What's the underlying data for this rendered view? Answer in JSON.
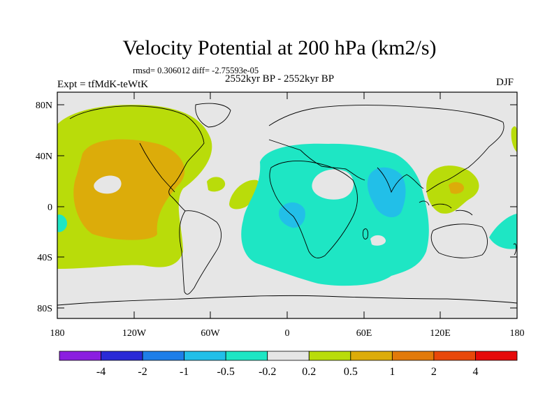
{
  "title": "Velocity Potential at 200 hPa (km2/s)",
  "stats": "rmsd= 0.306012 diff= -2.75593e-05",
  "subtitle": "2552kyr BP - 2552kyr BP",
  "left_label": "Expt = tfMdK-teWtK",
  "right_label": "DJF",
  "lat_labels": [
    "80N",
    "40N",
    "0",
    "40S",
    "80S"
  ],
  "lon_labels": [
    "180",
    "120W",
    "60W",
    "0",
    "60E",
    "120E",
    "180"
  ],
  "colorbar": {
    "colors": [
      "#8B1FE0",
      "#2A2AD6",
      "#1E7EE8",
      "#22BFE8",
      "#1EE6C4",
      "#E6E6E6",
      "#B9DC0A",
      "#DCAC0A",
      "#E27A0A",
      "#E8480A",
      "#E60A0A"
    ],
    "labels": [
      "-4",
      "-2",
      "-1",
      "-0.5",
      "-0.2",
      "0.2",
      "0.5",
      "1",
      "2",
      "4"
    ]
  },
  "colors": {
    "background": "#E6E6E6",
    "pos_light": "#B9DC0A",
    "pos_mid": "#DCAC0A",
    "neg_light": "#1EE6C4",
    "neg_mid": "#22BFE8"
  }
}
